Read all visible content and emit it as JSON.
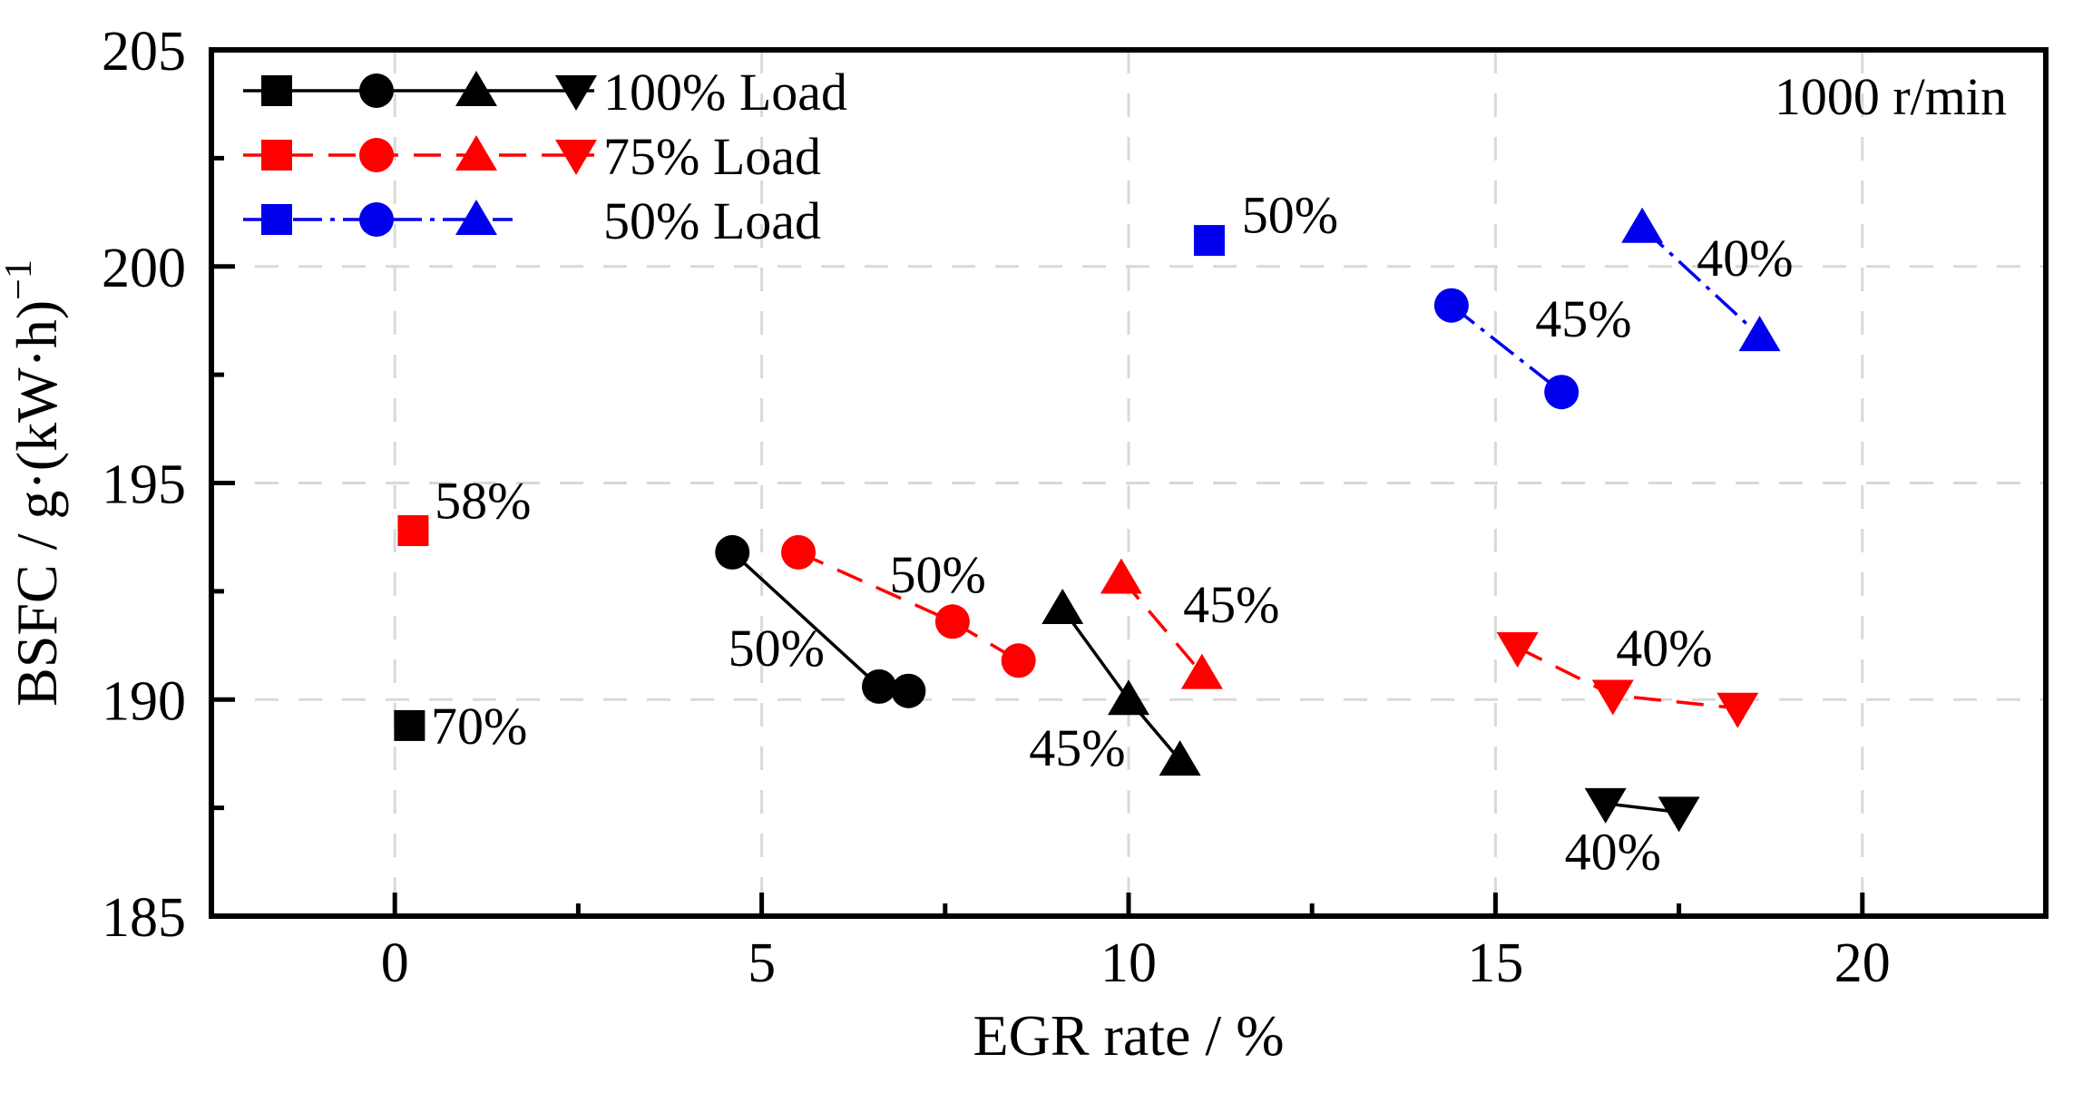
{
  "chart_data": {
    "type": "scatter",
    "title": "",
    "xlabel": "EGR rate / %",
    "ylabel": "BSFC / g·(kW·h)⁻¹",
    "xlim": [
      -2.5,
      22.5
    ],
    "ylim": [
      185,
      205
    ],
    "xticks": [
      0,
      5,
      10,
      15,
      20
    ],
    "yticks": [
      185,
      190,
      195,
      200,
      205
    ],
    "minor_tick_step": 2.5,
    "grid": {
      "on": true,
      "color": "#d9d9d9",
      "style": "dashed"
    },
    "corner_annotation": "1000 r/min",
    "legend_position": "top-left-inside",
    "series": [
      {
        "name": "100% Load",
        "color": "#000000",
        "line_style": "solid",
        "groups": [
          {
            "marker": "square",
            "points": [
              [
                0.2,
                189.4
              ]
            ],
            "annotation": {
              "text": "70%",
              "x": 1.15,
              "y": 189.4
            }
          },
          {
            "marker": "circle",
            "points": [
              [
                4.6,
                193.4
              ],
              [
                6.6,
                190.3
              ],
              [
                7.0,
                190.2
              ]
            ],
            "annotation": {
              "text": "50%",
              "x": 5.2,
              "y": 191.2
            }
          },
          {
            "marker": "triangle-up",
            "points": [
              [
                9.1,
                192.1
              ],
              [
                10.0,
                190.0
              ],
              [
                10.7,
                188.6
              ]
            ],
            "annotation": {
              "text": "45%",
              "x": 9.3,
              "y": 188.9
            }
          },
          {
            "marker": "triangle-down",
            "points": [
              [
                16.5,
                187.6
              ],
              [
                17.5,
                187.4
              ]
            ],
            "annotation": {
              "text": "40%",
              "x": 16.6,
              "y": 186.5
            }
          }
        ]
      },
      {
        "name": "75% Load",
        "color": "#ff0000",
        "line_style": "dashed",
        "groups": [
          {
            "marker": "square",
            "points": [
              [
                0.25,
                193.9
              ]
            ],
            "annotation": {
              "text": "58%",
              "x": 1.2,
              "y": 194.6
            }
          },
          {
            "marker": "circle",
            "points": [
              [
                5.5,
                193.4
              ],
              [
                7.6,
                191.8
              ],
              [
                8.5,
                190.9
              ]
            ],
            "annotation": {
              "text": "50%",
              "x": 7.4,
              "y": 192.9
            }
          },
          {
            "marker": "triangle-up",
            "points": [
              [
                9.9,
                192.8
              ],
              [
                11.0,
                190.6
              ]
            ],
            "annotation": {
              "text": "45%",
              "x": 11.4,
              "y": 192.2
            }
          },
          {
            "marker": "triangle-down",
            "points": [
              [
                15.3,
                191.2
              ],
              [
                16.6,
                190.1
              ],
              [
                18.3,
                189.8
              ]
            ],
            "annotation": {
              "text": "40%",
              "x": 17.3,
              "y": 191.2
            }
          }
        ]
      },
      {
        "name": "50% Load",
        "color": "#0000ee",
        "line_style": "dashdot",
        "groups": [
          {
            "marker": "square",
            "points": [
              [
                11.1,
                200.6
              ]
            ],
            "annotation": {
              "text": "50%",
              "x": 12.2,
              "y": 201.2
            }
          },
          {
            "marker": "circle",
            "points": [
              [
                14.4,
                199.1
              ],
              [
                15.9,
                197.1
              ]
            ],
            "annotation": {
              "text": "45%",
              "x": 16.2,
              "y": 198.8
            }
          },
          {
            "marker": "triangle-up",
            "points": [
              [
                17.0,
                200.9
              ],
              [
                18.6,
                198.4
              ]
            ],
            "annotation": {
              "text": "40%",
              "x": 18.4,
              "y": 200.2
            }
          }
        ]
      }
    ]
  }
}
